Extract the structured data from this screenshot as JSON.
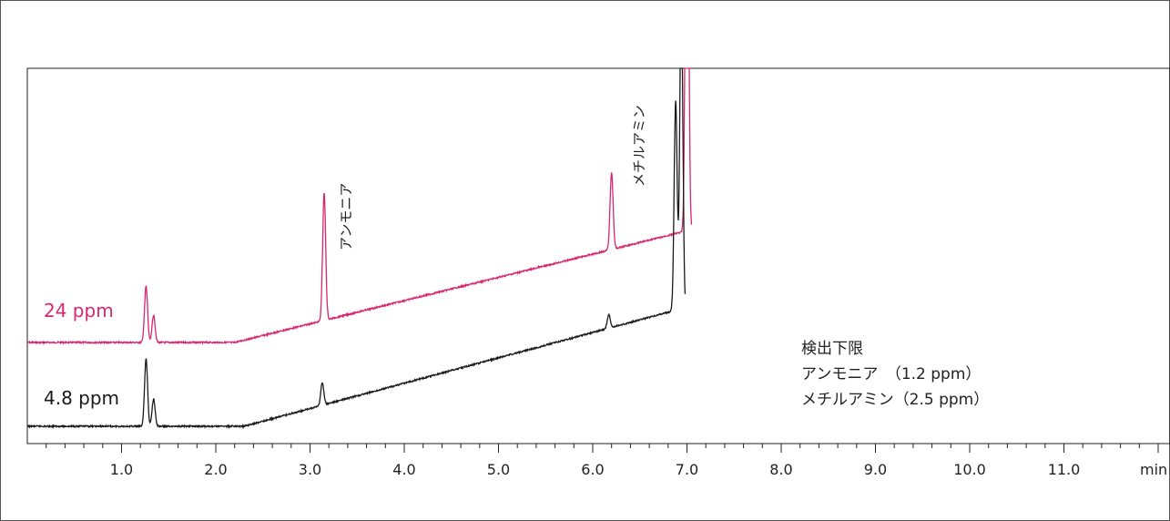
{
  "chart_data": {
    "type": "line",
    "xlabel": "min",
    "xlim": [
      0,
      12
    ],
    "x_ticks": [
      "1.0",
      "2.0",
      "3.0",
      "4.0",
      "5.0",
      "6.0",
      "7.0",
      "8.0",
      "9.0",
      "10.0",
      "11.0"
    ],
    "series": [
      {
        "name": "24 ppm",
        "color": "#d6286e",
        "peaks": [
          {
            "x": 1.26,
            "height": 0.62
          },
          {
            "x": 1.34,
            "height": 0.3
          },
          {
            "x": 3.15,
            "height": 1.4
          },
          {
            "x": 6.2,
            "height": 0.85
          },
          {
            "x": 7.0,
            "height": 6.0
          }
        ]
      },
      {
        "name": "4.8 ppm",
        "color": "#1a1a1a",
        "peaks": [
          {
            "x": 1.26,
            "height": 0.74
          },
          {
            "x": 1.34,
            "height": 0.3
          },
          {
            "x": 3.13,
            "height": 0.25
          },
          {
            "x": 6.17,
            "height": 0.15
          },
          {
            "x": 6.88,
            "height": 2.3
          },
          {
            "x": 6.94,
            "height": 3.5
          }
        ]
      }
    ],
    "annotations": [
      {
        "text": "アンモニア",
        "x": 3.15
      },
      {
        "text": "メチルアミン",
        "x": 6.2
      }
    ],
    "legend_box": {
      "title": "検出下限",
      "lines": [
        "アンモニア　（1.2 ppm）",
        "メチルアミン（2.5 ppm）"
      ]
    },
    "grid": false
  }
}
